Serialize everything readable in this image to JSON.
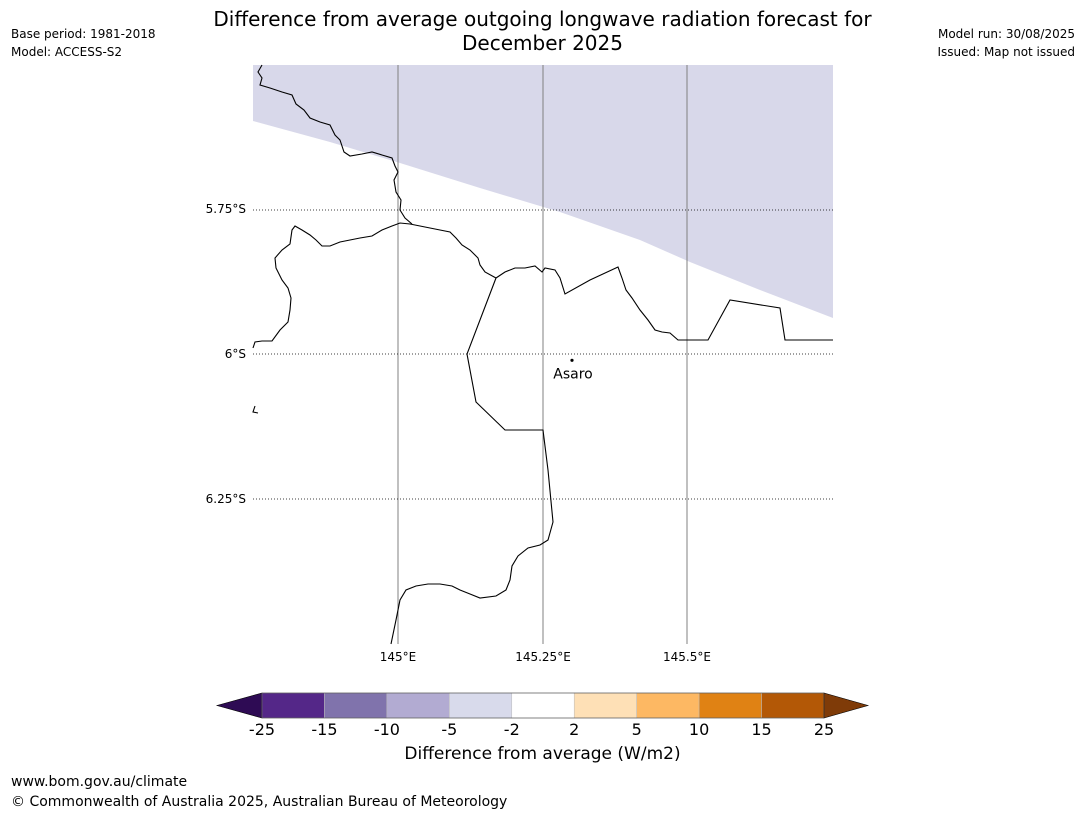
{
  "title_line1": "Difference from average outgoing longwave radiation forecast for",
  "title_line2": "December 2025",
  "meta_left": {
    "base_period": "Base period: 1981-2018",
    "model": "Model: ACCESS-S2"
  },
  "meta_right": {
    "model_run": "Model run: 30/08/2025",
    "issued": "Issued: Map not issued"
  },
  "map": {
    "lat_labels": [
      "5.75°S",
      "6°S",
      "6.25°S"
    ],
    "lon_labels": [
      "145°E",
      "145.25°E",
      "145.5°E"
    ],
    "place": {
      "name": "Asaro",
      "lon": 145.3,
      "lat": -6.01
    },
    "extent": {
      "lon_min": 144.75,
      "lon_max": 145.75,
      "lat_min": -6.5,
      "lat_max": -5.5
    },
    "anomaly_region": {
      "category": "-5 to -2",
      "color": "#d8d8ea"
    },
    "border_color": "#000000",
    "gridline_color": "#808080"
  },
  "colorbar": {
    "title": "Difference from average (W/m2)",
    "ticks": [
      "-25",
      "-15",
      "-10",
      "-5",
      "-2",
      "2",
      "5",
      "10",
      "15",
      "25"
    ],
    "under_color": "#2e0b54",
    "over_color": "#7f3b08",
    "colors": [
      "#542788",
      "#8073ac",
      "#b2abd2",
      "#d8daeb",
      "#ffffff",
      "#fee0b6",
      "#fdb863",
      "#e08214",
      "#b35806"
    ]
  },
  "footer": {
    "url": "www.bom.gov.au/climate",
    "copyright": "© Commonwealth of Australia 2025, Australian Bureau of Meteorology"
  }
}
